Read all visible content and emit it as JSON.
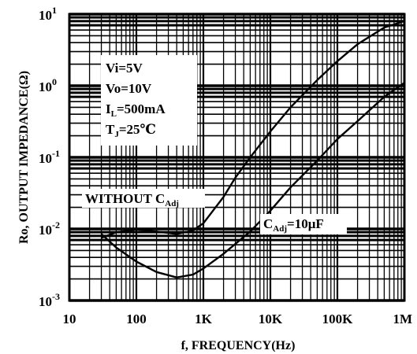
{
  "chart_data": {
    "type": "line",
    "xlabel": "f, FREQUENCY(Hz)",
    "ylabel": "Ro, OUTPUT IMPEDANCE(Ω)",
    "x_scale": "log",
    "y_scale": "log",
    "xlim": [
      10,
      1000000
    ],
    "ylim": [
      0.001,
      10
    ],
    "x_ticks": [
      {
        "value": 10,
        "label": "10"
      },
      {
        "value": 100,
        "label": "100"
      },
      {
        "value": 1000,
        "label": "1K"
      },
      {
        "value": 10000,
        "label": "10K"
      },
      {
        "value": 100000,
        "label": "100K"
      },
      {
        "value": 1000000,
        "label": "1M"
      }
    ],
    "y_ticks": [
      {
        "value": 10,
        "mantissa": "10",
        "exponent": "1"
      },
      {
        "value": 1,
        "mantissa": "10",
        "exponent": "0"
      },
      {
        "value": 0.1,
        "mantissa": "10",
        "exponent": "-1"
      },
      {
        "value": 0.01,
        "mantissa": "10",
        "exponent": "-2"
      },
      {
        "value": 0.001,
        "mantissa": "10",
        "exponent": "-3"
      }
    ],
    "conditions": {
      "vi": "Vi=5V",
      "vo": "Vo=10V",
      "il": {
        "main": "I",
        "sub": "L",
        "rest": "=500mA"
      },
      "tj": {
        "main": "T",
        "sub": "J",
        "rest": "=25℃"
      }
    },
    "series": [
      {
        "label": {
          "main": "WITHOUT C",
          "sub": "Adj",
          "rest": ""
        },
        "x": [
          30,
          50,
          100,
          200,
          400,
          700,
          1000,
          2000,
          3000,
          5000,
          10000,
          20000,
          50000,
          100000,
          200000,
          500000,
          1000000
        ],
        "y": [
          0.0075,
          0.009,
          0.0098,
          0.0092,
          0.0085,
          0.0095,
          0.012,
          0.028,
          0.052,
          0.1,
          0.23,
          0.5,
          1.2,
          2.2,
          3.8,
          6.5,
          8
        ]
      },
      {
        "label": {
          "main": "C",
          "sub": "Adj",
          "rest": "=10μF"
        },
        "x": [
          30,
          50,
          100,
          200,
          400,
          700,
          1000,
          2000,
          5000,
          10000,
          20000,
          50000,
          100000,
          200000,
          500000,
          1000000
        ],
        "y": [
          0.0085,
          0.0055,
          0.0035,
          0.0025,
          0.0021,
          0.0023,
          0.0028,
          0.0045,
          0.0092,
          0.018,
          0.038,
          0.09,
          0.18,
          0.32,
          0.7,
          1.1
        ]
      }
    ]
  }
}
